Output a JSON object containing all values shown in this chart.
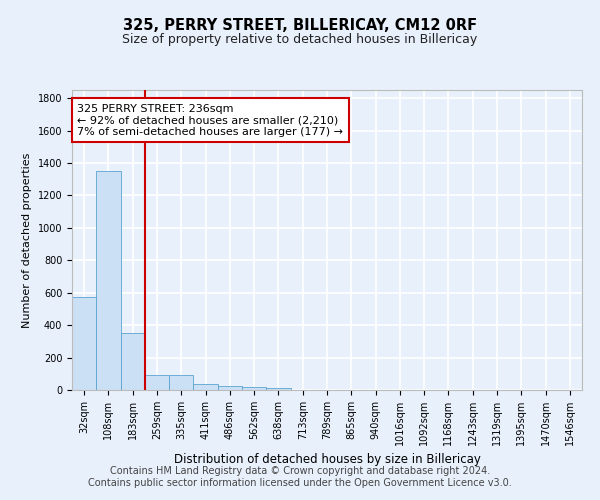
{
  "title": "325, PERRY STREET, BILLERICAY, CM12 0RF",
  "subtitle": "Size of property relative to detached houses in Billericay",
  "xlabel": "Distribution of detached houses by size in Billericay",
  "ylabel": "Number of detached properties",
  "bar_labels": [
    "32sqm",
    "108sqm",
    "183sqm",
    "259sqm",
    "335sqm",
    "411sqm",
    "486sqm",
    "562sqm",
    "638sqm",
    "713sqm",
    "789sqm",
    "865sqm",
    "940sqm",
    "1016sqm",
    "1092sqm",
    "1168sqm",
    "1243sqm",
    "1319sqm",
    "1395sqm",
    "1470sqm",
    "1546sqm"
  ],
  "bar_values": [
    575,
    1350,
    350,
    95,
    95,
    35,
    25,
    20,
    15,
    0,
    0,
    0,
    0,
    0,
    0,
    0,
    0,
    0,
    0,
    0,
    0
  ],
  "bar_color": "#cce0f5",
  "bar_edge_color": "#5ba3d0",
  "background_color": "#e8f0fb",
  "grid_color": "#ffffff",
  "vline_x_idx": 3,
  "vline_color": "#cc0000",
  "annotation_text": "325 PERRY STREET: 236sqm\n← 92% of detached houses are smaller (2,210)\n7% of semi-detached houses are larger (177) →",
  "annotation_box_color": "#ffffff",
  "annotation_box_edge_color": "#cc0000",
  "ylim": [
    0,
    1850
  ],
  "yticks": [
    0,
    200,
    400,
    600,
    800,
    1000,
    1200,
    1400,
    1600,
    1800
  ],
  "footer": "Contains HM Land Registry data © Crown copyright and database right 2024.\nContains public sector information licensed under the Open Government Licence v3.0.",
  "title_fontsize": 10.5,
  "subtitle_fontsize": 9,
  "annotation_fontsize": 8,
  "footer_fontsize": 7,
  "tick_fontsize": 7,
  "ylabel_fontsize": 8,
  "xlabel_fontsize": 8.5
}
